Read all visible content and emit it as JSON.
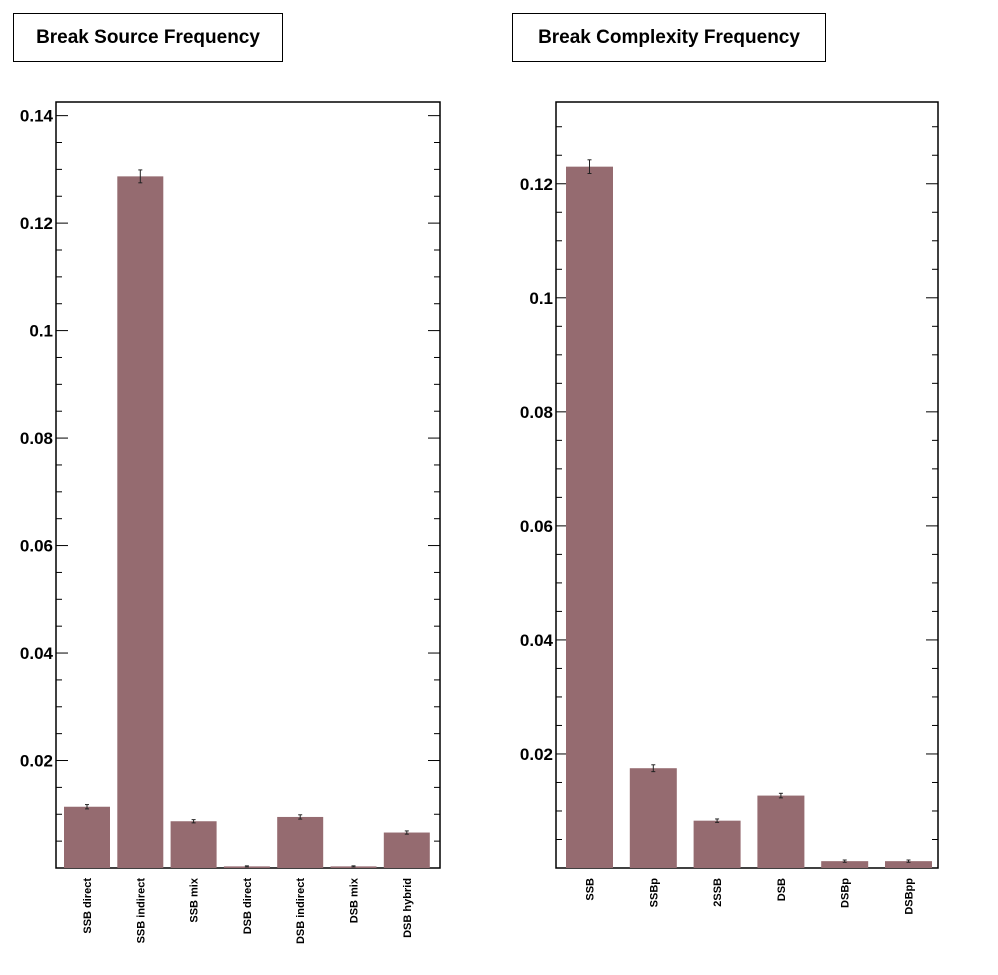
{
  "chart_data": [
    {
      "type": "bar",
      "title": "Break Source Frequency",
      "categories": [
        "SSB direct",
        "SSB indirect",
        "SSB mix",
        "DSB direct",
        "DSB indirect",
        "DSB mix",
        "DSB hybrid"
      ],
      "values": [
        0.0114,
        0.1287,
        0.0087,
        0.0003,
        0.0095,
        0.0003,
        0.0066
      ],
      "errors": [
        0.0004,
        0.0012,
        0.0003,
        0.0001,
        0.0004,
        0.0001,
        0.0003
      ],
      "ylim": [
        0,
        0.142
      ],
      "yticks": [
        0.02,
        0.04,
        0.06,
        0.08,
        0.1,
        0.12,
        0.14
      ],
      "ytick_labels": [
        "0.02",
        "0.04",
        "0.06",
        "0.08",
        "0.1",
        "0.12",
        "0.14"
      ],
      "bar_color": "#956b70",
      "grid": false
    },
    {
      "type": "bar",
      "title": "Break Complexity Frequency",
      "categories": [
        "SSB",
        "SSBp",
        "2SSB",
        "DSB",
        "DSBp",
        "DSBpp"
      ],
      "values": [
        0.123,
        0.0175,
        0.0083,
        0.0127,
        0.0012,
        0.0012
      ],
      "errors": [
        0.0012,
        0.0006,
        0.0003,
        0.0004,
        0.0002,
        0.0002
      ],
      "ylim": [
        0,
        0.1375
      ],
      "yticks": [
        0.02,
        0.04,
        0.06,
        0.08,
        0.1,
        0.12
      ],
      "ytick_labels": [
        "0.02",
        "0.04",
        "0.06",
        "0.08",
        "0.1",
        "0.12"
      ],
      "bar_color": "#956b70",
      "grid": false
    }
  ]
}
